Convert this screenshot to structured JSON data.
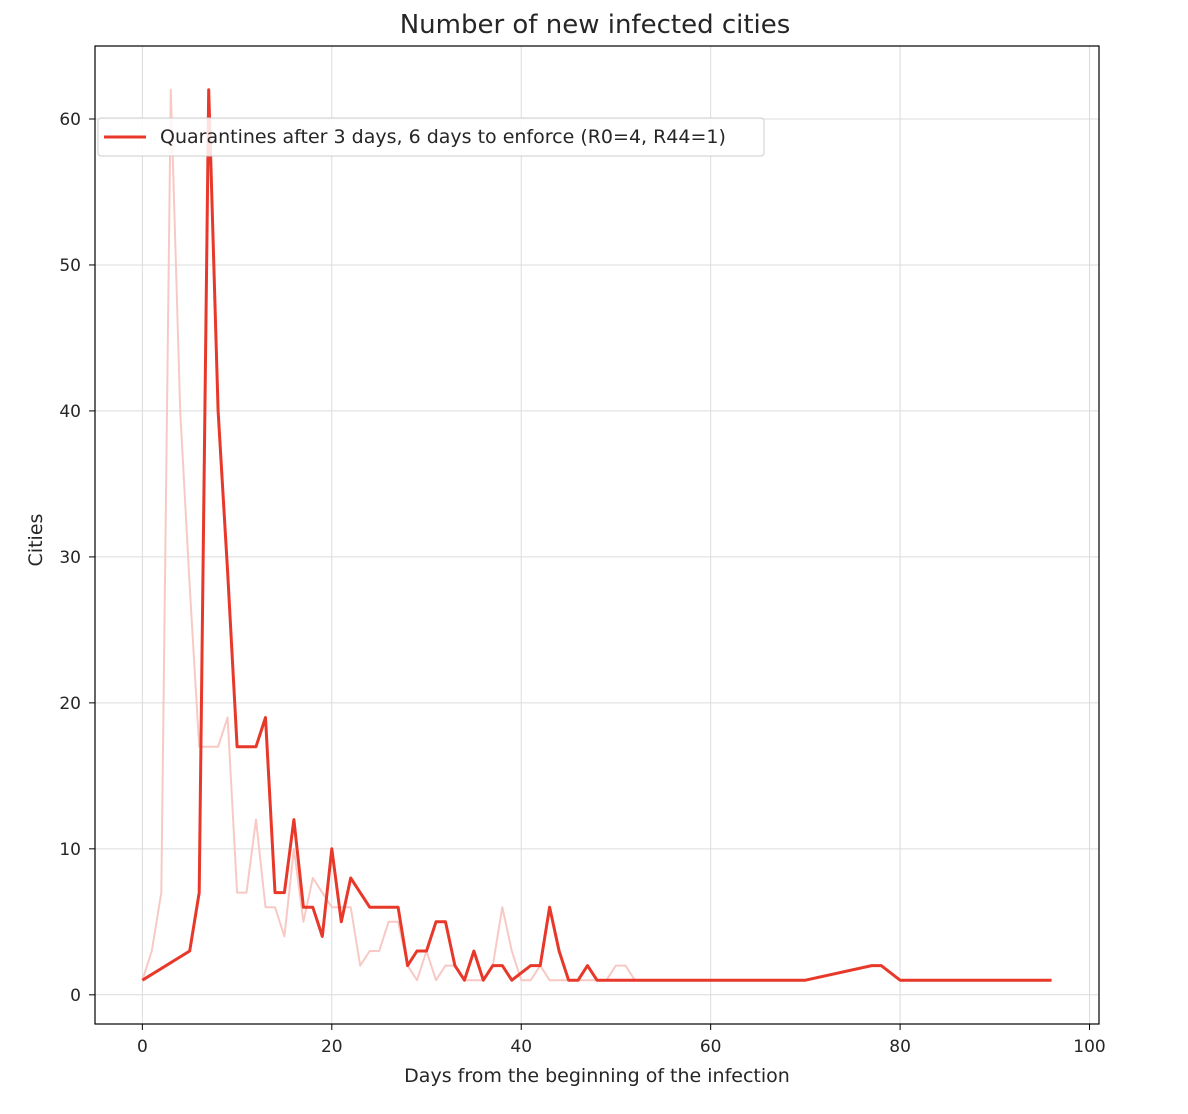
{
  "chart_data": {
    "type": "line",
    "title": "Number of new infected cities",
    "xlabel": "Days from the beginning of the infection",
    "ylabel": "Cities",
    "xlim": [
      -5,
      101
    ],
    "ylim": [
      -2,
      65
    ],
    "xticks": [
      0,
      20,
      40,
      60,
      80,
      100
    ],
    "yticks": [
      0,
      10,
      20,
      30,
      40,
      50,
      60
    ],
    "grid": true,
    "legend": {
      "placement": "upper-left",
      "entries": [
        {
          "label": "Quarantines after 3 days, 6 days to enforce (R0=4, R44=1)",
          "color": "#e8382a"
        }
      ]
    },
    "series": [
      {
        "name": "Quarantines after 3 days, 6 days to enforce (R0=4, R44=1)",
        "color": "#e8382a",
        "x": [
          0,
          5,
          6,
          7,
          8,
          9,
          10,
          11,
          12,
          13,
          14,
          15,
          16,
          17,
          18,
          19,
          20,
          21,
          22,
          23,
          24,
          25,
          26,
          27,
          28,
          29,
          30,
          31,
          32,
          33,
          34,
          35,
          36,
          37,
          38,
          39,
          40,
          41,
          42,
          43,
          44,
          45,
          46,
          47,
          48,
          70,
          77,
          78,
          80,
          96
        ],
        "y": [
          1,
          3,
          7,
          62,
          40,
          29,
          17,
          17,
          17,
          19,
          7,
          7,
          12,
          6,
          6,
          4,
          10,
          5,
          8,
          7,
          6,
          6,
          6,
          6,
          2,
          3,
          3,
          5,
          5,
          2,
          1,
          3,
          1,
          2,
          2,
          1,
          1.5,
          2,
          2,
          6,
          3,
          1,
          1,
          2,
          1,
          1,
          2,
          2,
          1,
          1
        ]
      },
      {
        "color": "#f8c9c4",
        "x": [
          0,
          1,
          2,
          3,
          4,
          5,
          6,
          7,
          8,
          9,
          10,
          11,
          12,
          13,
          14,
          15,
          16,
          17,
          18,
          19,
          20,
          21,
          22,
          23,
          24,
          25,
          26,
          27,
          28,
          29,
          30,
          31,
          32,
          33,
          34,
          35,
          36,
          37,
          38,
          39,
          40,
          41,
          42,
          43,
          44,
          45,
          46,
          47,
          48,
          49,
          50,
          51,
          52
        ],
        "y": [
          1,
          3,
          7,
          62,
          40,
          28,
          17,
          17,
          17,
          19,
          7,
          7,
          12,
          6,
          6,
          4,
          10,
          5,
          8,
          7,
          6,
          6,
          6,
          2,
          3,
          3,
          5,
          5,
          2,
          1,
          3,
          1,
          2,
          2,
          1,
          1,
          1,
          2,
          6,
          3,
          1,
          1,
          2,
          1,
          1,
          1,
          1,
          1,
          1,
          1,
          2,
          2,
          1
        ]
      }
    ]
  }
}
